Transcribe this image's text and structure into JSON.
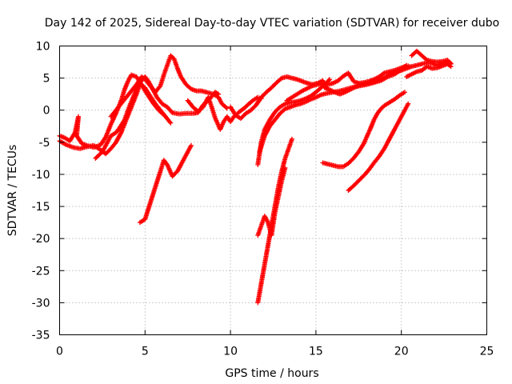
{
  "chart_data": {
    "type": "scatter",
    "title": "Day 142 of 2025, Sidereal Day-to-day VTEC variation (SDTVAR) for receiver dubo",
    "xlabel": "GPS time / hours",
    "ylabel": "SDTVAR / TECUs",
    "xlim": [
      0,
      25
    ],
    "ylim": [
      -35,
      10
    ],
    "xticks": [
      "0",
      "5",
      "10",
      "15",
      "20",
      "25"
    ],
    "yticks": [
      "10",
      "5",
      "0",
      "-5",
      "-10",
      "-15",
      "-20",
      "-25",
      "-30",
      "-35"
    ],
    "grid": true,
    "marker": "plus",
    "color": "#ff0000",
    "series": [
      {
        "points": [
          [
            0,
            -4
          ],
          [
            0.3,
            -4.3
          ],
          [
            0.6,
            -4.8
          ],
          [
            0.9,
            -3.5
          ],
          [
            1.1,
            -1
          ],
          [
            1.0,
            -4
          ],
          [
            1.3,
            -5.2
          ],
          [
            1.6,
            -5.5
          ],
          [
            2.0,
            -5.8
          ],
          [
            2.4,
            -5.4
          ],
          [
            2.7,
            -4.2
          ],
          [
            3.0,
            -2.2
          ],
          [
            3.3,
            -0.5
          ],
          [
            3.6,
            1.5
          ],
          [
            3.8,
            3.2
          ],
          [
            4.0,
            4.5
          ],
          [
            4.2,
            5.5
          ],
          [
            4.5,
            5.2
          ],
          [
            4.8,
            4.0
          ],
          [
            5.0,
            3.0
          ],
          [
            5.2,
            2.2
          ],
          [
            5.5,
            1.0
          ],
          [
            5.8,
            0
          ],
          [
            6.2,
            -1.0
          ],
          [
            6.5,
            -2.0
          ]
        ]
      },
      {
        "points": [
          [
            0,
            -4.8
          ],
          [
            0.4,
            -5.4
          ],
          [
            0.8,
            -5.8
          ],
          [
            1.2,
            -6.0
          ],
          [
            1.6,
            -5.7
          ],
          [
            2.0,
            -5.5
          ],
          [
            2.4,
            -6.2
          ],
          [
            2.7,
            -6.8
          ],
          [
            3.0,
            -6.0
          ],
          [
            3.3,
            -5.0
          ],
          [
            3.6,
            -3.5
          ],
          [
            3.9,
            -1.5
          ],
          [
            4.2,
            0.5
          ],
          [
            4.5,
            2.5
          ],
          [
            4.7,
            4.0
          ],
          [
            5.0,
            3.5
          ],
          [
            5.3,
            2.2
          ],
          [
            5.6,
            1.0
          ],
          [
            5.9,
            0
          ],
          [
            6.2,
            -1.0
          ]
        ]
      },
      {
        "points": [
          [
            2.1,
            -7.5
          ],
          [
            2.5,
            -6.5
          ],
          [
            2.8,
            -5.0
          ],
          [
            3.0,
            -4.0
          ],
          [
            3.3,
            -3.5
          ],
          [
            3.5,
            -2.8
          ],
          [
            3.8,
            -1.5
          ],
          [
            4.0,
            0
          ],
          [
            4.3,
            2.0
          ],
          [
            4.6,
            4.0
          ],
          [
            5.0,
            5.2
          ],
          [
            5.2,
            4.5
          ],
          [
            5.5,
            3.0
          ],
          [
            5.7,
            2.0
          ],
          [
            6.0,
            1.0
          ],
          [
            6.3,
            0.5
          ],
          [
            6.6,
            -0.4
          ],
          [
            7.0,
            -0.6
          ],
          [
            7.4,
            -0.5
          ],
          [
            7.8,
            -0.5
          ],
          [
            8.1,
            -0.4
          ],
          [
            8.4,
            0.8
          ],
          [
            8.8,
            1.8
          ],
          [
            9.1,
            2.8
          ],
          [
            9.3,
            2.5
          ]
        ]
      },
      {
        "points": [
          [
            3.0,
            -1.0
          ],
          [
            3.3,
            0
          ],
          [
            3.6,
            1.0
          ],
          [
            3.9,
            2.0
          ],
          [
            4.2,
            3.0
          ],
          [
            4.5,
            4.0
          ],
          [
            4.8,
            5.2
          ],
          [
            5.0,
            4.8
          ],
          [
            5.3,
            3.8
          ],
          [
            5.6,
            2.8
          ],
          [
            5.9,
            3.8
          ],
          [
            6.1,
            5.5
          ],
          [
            6.3,
            7.0
          ],
          [
            6.5,
            8.5
          ],
          [
            6.7,
            8.0
          ],
          [
            6.9,
            6.5
          ],
          [
            7.1,
            5.2
          ],
          [
            7.4,
            4.0
          ],
          [
            7.7,
            3.3
          ],
          [
            8.0,
            3.0
          ],
          [
            8.3,
            3.0
          ],
          [
            8.6,
            2.8
          ],
          [
            9.0,
            2.5
          ],
          [
            9.3,
            2.0
          ],
          [
            9.5,
            1.0
          ],
          [
            9.8,
            0.3
          ]
        ]
      },
      {
        "points": [
          [
            4.7,
            -17.5
          ],
          [
            5.0,
            -17.0
          ],
          [
            5.3,
            -14.5
          ],
          [
            5.6,
            -12.0
          ],
          [
            5.9,
            -9.5
          ],
          [
            6.1,
            -7.8
          ],
          [
            6.3,
            -8.5
          ],
          [
            6.6,
            -10.3
          ],
          [
            6.9,
            -9.5
          ],
          [
            7.2,
            -8.0
          ],
          [
            7.5,
            -6.5
          ],
          [
            7.7,
            -5.5
          ]
        ]
      },
      {
        "points": [
          [
            7.5,
            1.5
          ],
          [
            7.8,
            0.5
          ],
          [
            8.1,
            -0.2
          ],
          [
            8.4,
            0.5
          ],
          [
            8.7,
            2.0
          ],
          [
            8.9,
            0.5
          ],
          [
            9.1,
            -1.2
          ],
          [
            9.4,
            -3.0
          ],
          [
            9.6,
            -1.8
          ],
          [
            9.8,
            -1.0
          ],
          [
            10.0,
            -1.8
          ],
          [
            10.2,
            -1.0
          ],
          [
            10.5,
            -0.3
          ],
          [
            10.8,
            0.3
          ],
          [
            11.0,
            0.8
          ],
          [
            11.3,
            1.5
          ],
          [
            11.6,
            2.0
          ],
          [
            11.8,
            1.8
          ]
        ]
      },
      {
        "points": [
          [
            10.0,
            0.5
          ],
          [
            10.3,
            -0.8
          ],
          [
            10.6,
            -1.3
          ],
          [
            10.9,
            -0.5
          ],
          [
            11.2,
            0
          ],
          [
            11.5,
            0.8
          ],
          [
            11.8,
            2.0
          ],
          [
            12.1,
            2.8
          ],
          [
            12.4,
            3.5
          ],
          [
            12.7,
            4.3
          ],
          [
            13.0,
            5.0
          ],
          [
            13.3,
            5.2
          ],
          [
            13.6,
            5.0
          ],
          [
            13.9,
            4.8
          ],
          [
            14.2,
            4.5
          ],
          [
            14.5,
            4.2
          ],
          [
            14.8,
            4.0
          ],
          [
            15.1,
            4.2
          ],
          [
            15.4,
            4.6
          ],
          [
            15.6,
            3.5
          ]
        ]
      },
      {
        "points": [
          [
            11.6,
            -30
          ],
          [
            11.8,
            -27
          ],
          [
            12.0,
            -24
          ],
          [
            12.2,
            -21
          ],
          [
            12.4,
            -18
          ],
          [
            12.6,
            -15
          ],
          [
            12.8,
            -12
          ],
          [
            13.0,
            -9.5
          ],
          [
            13.2,
            -7.5
          ],
          [
            13.4,
            -6
          ],
          [
            13.6,
            -4.5
          ]
        ]
      },
      {
        "points": [
          [
            11.6,
            -19.5
          ],
          [
            11.8,
            -18
          ],
          [
            12.0,
            -16.5
          ],
          [
            12.2,
            -17.5
          ],
          [
            12.4,
            -19.5
          ],
          [
            12.6,
            -16
          ],
          [
            12.8,
            -13.5
          ],
          [
            13.0,
            -11
          ],
          [
            13.2,
            -9
          ]
        ]
      },
      {
        "points": [
          [
            11.6,
            -8.5
          ],
          [
            11.8,
            -5.0
          ],
          [
            12.0,
            -3.0
          ],
          [
            12.3,
            -1.5
          ],
          [
            12.6,
            -0.3
          ],
          [
            12.9,
            0.5
          ],
          [
            13.2,
            1.0
          ],
          [
            13.5,
            1.2
          ],
          [
            13.8,
            1.3
          ],
          [
            14.1,
            1.5
          ],
          [
            14.4,
            1.8
          ],
          [
            14.7,
            2.2
          ],
          [
            15.0,
            2.8
          ],
          [
            15.3,
            3.5
          ],
          [
            15.6,
            4.2
          ],
          [
            15.8,
            4.8
          ]
        ]
      },
      {
        "points": [
          [
            11.7,
            -6.5
          ],
          [
            12.0,
            -4.0
          ],
          [
            12.3,
            -2.5
          ],
          [
            12.6,
            -1.5
          ],
          [
            12.9,
            -0.5
          ],
          [
            13.2,
            0.2
          ],
          [
            13.5,
            0.5
          ],
          [
            13.8,
            0.8
          ],
          [
            14.1,
            1.0
          ],
          [
            14.4,
            1.3
          ],
          [
            14.7,
            1.7
          ],
          [
            15.0,
            2.0
          ],
          [
            15.3,
            2.4
          ],
          [
            15.6,
            2.6
          ],
          [
            16.0,
            2.8
          ],
          [
            16.4,
            3.0
          ],
          [
            16.8,
            3.3
          ],
          [
            17.2,
            3.6
          ],
          [
            17.6,
            3.8
          ],
          [
            18.0,
            4.0
          ],
          [
            18.4,
            4.3
          ],
          [
            18.8,
            4.6
          ],
          [
            19.2,
            5.2
          ],
          [
            19.6,
            5.6
          ],
          [
            20.0,
            6.3
          ],
          [
            20.3,
            7.0
          ],
          [
            20.5,
            6.8
          ]
        ]
      },
      {
        "points": [
          [
            13.3,
            1.5
          ],
          [
            13.6,
            2.0
          ],
          [
            13.9,
            2.5
          ],
          [
            14.2,
            3.0
          ],
          [
            14.5,
            3.4
          ],
          [
            14.8,
            3.8
          ],
          [
            15.1,
            4.0
          ],
          [
            15.4,
            4.1
          ],
          [
            15.7,
            4.0
          ],
          [
            16.0,
            4.2
          ],
          [
            16.3,
            4.6
          ],
          [
            16.6,
            5.3
          ],
          [
            16.9,
            5.8
          ],
          [
            17.2,
            4.5
          ],
          [
            17.5,
            4.2
          ],
          [
            17.8,
            4.3
          ],
          [
            18.1,
            4.5
          ],
          [
            18.4,
            4.8
          ],
          [
            18.7,
            5.2
          ],
          [
            19.0,
            5.8
          ],
          [
            19.3,
            6.0
          ],
          [
            19.6,
            6.2
          ],
          [
            19.9,
            6.5
          ],
          [
            20.2,
            6.8
          ]
        ]
      },
      {
        "points": [
          [
            15.5,
            3.5
          ],
          [
            15.8,
            3.2
          ],
          [
            16.1,
            2.8
          ],
          [
            16.4,
            2.5
          ],
          [
            16.7,
            2.8
          ],
          [
            17.0,
            3.2
          ],
          [
            17.3,
            3.6
          ],
          [
            17.6,
            3.9
          ],
          [
            17.9,
            4.1
          ],
          [
            18.2,
            4.3
          ],
          [
            18.5,
            4.5
          ],
          [
            18.8,
            4.8
          ],
          [
            19.1,
            5.2
          ],
          [
            19.4,
            5.8
          ],
          [
            19.7,
            6.0
          ],
          [
            20.0,
            6.2
          ],
          [
            20.3,
            6.5
          ],
          [
            20.6,
            6.8
          ],
          [
            20.9,
            7.0
          ],
          [
            21.2,
            7.2
          ],
          [
            21.5,
            7.4
          ],
          [
            21.8,
            7.3
          ],
          [
            22.1,
            7.0
          ],
          [
            22.4,
            7.3
          ],
          [
            22.7,
            7.5
          ],
          [
            22.9,
            7.2
          ]
        ]
      },
      {
        "points": [
          [
            15.4,
            -8.2
          ],
          [
            15.7,
            -8.4
          ],
          [
            16.0,
            -8.6
          ],
          [
            16.3,
            -8.8
          ],
          [
            16.6,
            -8.8
          ],
          [
            16.9,
            -8.3
          ],
          [
            17.2,
            -7.5
          ],
          [
            17.5,
            -6.5
          ],
          [
            17.8,
            -5.2
          ],
          [
            18.0,
            -4.0
          ],
          [
            18.2,
            -2.8
          ],
          [
            18.4,
            -1.5
          ],
          [
            18.6,
            -0.5
          ],
          [
            18.8,
            0.2
          ],
          [
            19.0,
            0.7
          ],
          [
            19.3,
            1.2
          ],
          [
            19.6,
            1.7
          ],
          [
            19.9,
            2.3
          ],
          [
            20.2,
            2.8
          ]
        ]
      },
      {
        "points": [
          [
            16.9,
            -12.5
          ],
          [
            17.2,
            -11.8
          ],
          [
            17.5,
            -11.0
          ],
          [
            17.8,
            -10.2
          ],
          [
            18.1,
            -9.3
          ],
          [
            18.4,
            -8.2
          ],
          [
            18.7,
            -7.2
          ],
          [
            19.0,
            -6.0
          ],
          [
            19.3,
            -4.5
          ],
          [
            19.6,
            -3.0
          ],
          [
            19.9,
            -1.5
          ],
          [
            20.2,
            0
          ],
          [
            20.4,
            1.0
          ]
        ]
      },
      {
        "points": [
          [
            20.3,
            5.2
          ],
          [
            20.6,
            5.6
          ],
          [
            20.9,
            6.0
          ],
          [
            21.2,
            6.2
          ],
          [
            21.5,
            6.8
          ],
          [
            21.8,
            6.5
          ],
          [
            22.1,
            6.6
          ],
          [
            22.4,
            6.9
          ],
          [
            22.7,
            7.2
          ],
          [
            22.9,
            6.8
          ]
        ]
      },
      {
        "points": [
          [
            20.6,
            8.5
          ],
          [
            20.9,
            9.2
          ],
          [
            21.2,
            8.5
          ],
          [
            21.5,
            7.8
          ],
          [
            21.8,
            7.6
          ],
          [
            22.1,
            7.5
          ],
          [
            22.4,
            7.6
          ],
          [
            22.7,
            7.8
          ],
          [
            22.9,
            7.3
          ]
        ]
      }
    ]
  }
}
